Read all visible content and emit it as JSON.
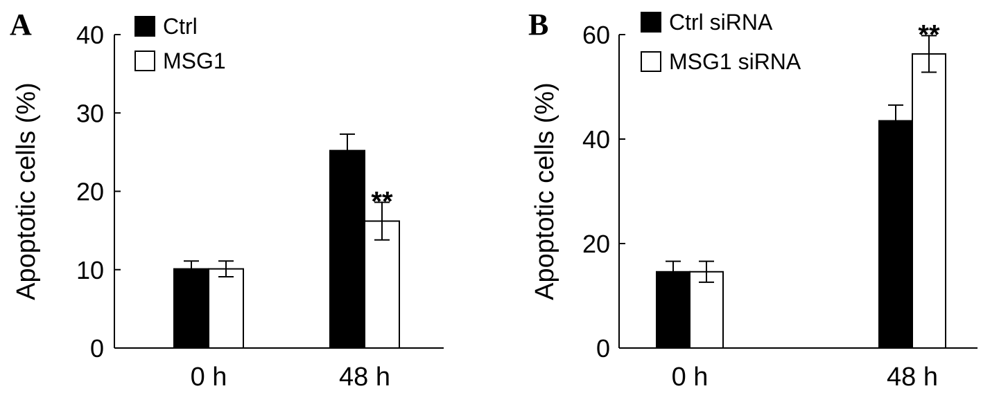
{
  "chart_data": [
    {
      "type": "bar",
      "panel_label": "A",
      "ylabel": "Apoptotic cells (%)",
      "xlabel": "",
      "ylim": [
        0,
        40
      ],
      "yticks": [
        0,
        10,
        20,
        30,
        40
      ],
      "categories": [
        "0 h",
        "48 h"
      ],
      "series": [
        {
          "name": "Ctrl",
          "color": "#000000",
          "values": [
            10.1,
            25.2
          ],
          "errors": [
            1.0,
            2.1
          ]
        },
        {
          "name": "MSG1",
          "color": "#ffffff",
          "values": [
            10.1,
            16.2
          ],
          "errors": [
            1.0,
            2.4
          ]
        }
      ],
      "annotations": [
        {
          "text": "**",
          "category": "48 h",
          "series": "MSG1"
        }
      ],
      "legend": "top-left"
    },
    {
      "type": "bar",
      "panel_label": "B",
      "ylabel": "Apoptotic cells (%)",
      "xlabel": "",
      "ylim": [
        0,
        60
      ],
      "yticks": [
        0,
        20,
        40,
        60
      ],
      "categories": [
        "0 h",
        "48 h"
      ],
      "series": [
        {
          "name": "Ctrl siRNA",
          "color": "#000000",
          "values": [
            14.6,
            43.5
          ],
          "errors": [
            2.0,
            3.0
          ]
        },
        {
          "name": "MSG1 siRNA",
          "color": "#ffffff",
          "values": [
            14.6,
            56.3
          ],
          "errors": [
            2.0,
            3.5
          ]
        }
      ],
      "annotations": [
        {
          "text": "**",
          "category": "48 h",
          "series": "MSG1 siRNA"
        }
      ],
      "legend": "top-left"
    }
  ]
}
